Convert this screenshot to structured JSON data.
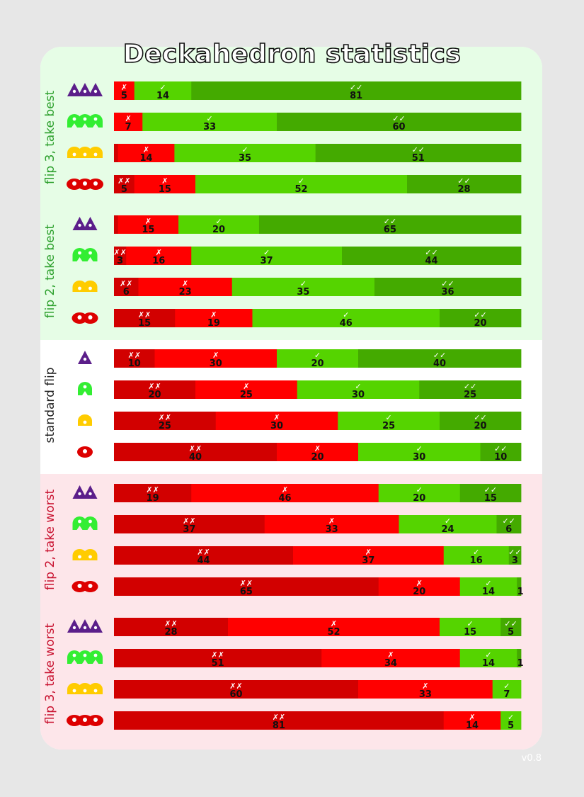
{
  "title": "Deckahedron statistics",
  "version": "v0.8",
  "colors": {
    "page_bg": "#e7e7e7",
    "good_section_bg": "#e6fde6",
    "neutral_section_bg": "#ffffff",
    "bad_section_bg": "#fde6ea",
    "double_fail": "#d20000",
    "fail": "#ff0000",
    "success": "#55d400",
    "double_success": "#44aa00",
    "good_label": "#2ca02c",
    "neutral_label": "#222222",
    "bad_label": "#c8102e",
    "icon_purple": "#5b1e8a",
    "icon_green": "#33ee33",
    "icon_yellow": "#ffcc00",
    "icon_red": "#dd0000"
  },
  "outcome_marks": {
    "double_fail": "✗✗",
    "fail": "✗",
    "success": "✓",
    "double_success": "✓✓"
  },
  "chart_data": {
    "type": "bar",
    "orientation": "horizontal",
    "stacked": true,
    "normalized_percent": true,
    "series": [
      {
        "name": "✗✗"
      },
      {
        "name": "✗"
      },
      {
        "name": "✓"
      },
      {
        "name": "✓✓"
      }
    ],
    "groups": [
      {
        "label": "flip 3, take best",
        "tone": "good",
        "rows": [
          {
            "icon": "triangle-icon",
            "icon_color": "purple",
            "count": 3,
            "values": [
              0,
              5,
              14,
              81
            ],
            "labels": [
              "",
              "5",
              "14",
              "81"
            ]
          },
          {
            "icon": "arch-icon",
            "icon_color": "green",
            "count": 3,
            "values": [
              0,
              7,
              33,
              60
            ],
            "labels": [
              "",
              "7",
              "33",
              "60"
            ]
          },
          {
            "icon": "dome-icon",
            "icon_color": "yellow",
            "count": 3,
            "values": [
              1,
              14,
              35,
              51
            ],
            "labels": [
              "",
              "14",
              "35",
              "51"
            ]
          },
          {
            "icon": "blob-icon",
            "icon_color": "red",
            "count": 3,
            "values": [
              5,
              15,
              52,
              28
            ],
            "labels": [
              "5",
              "15",
              "52",
              "28"
            ]
          }
        ]
      },
      {
        "label": "flip 2, take best",
        "tone": "good",
        "rows": [
          {
            "icon": "triangle-icon",
            "icon_color": "purple",
            "count": 2,
            "values": [
              1,
              15,
              20,
              65
            ],
            "labels": [
              "",
              "15",
              "20",
              "65"
            ]
          },
          {
            "icon": "arch-icon",
            "icon_color": "green",
            "count": 2,
            "values": [
              3,
              16,
              37,
              44
            ],
            "labels": [
              "3",
              "16",
              "37",
              "44"
            ]
          },
          {
            "icon": "dome-icon",
            "icon_color": "yellow",
            "count": 2,
            "values": [
              6,
              23,
              35,
              36
            ],
            "labels": [
              "6",
              "23",
              "35",
              "36"
            ]
          },
          {
            "icon": "blob-icon",
            "icon_color": "red",
            "count": 2,
            "values": [
              15,
              19,
              46,
              20
            ],
            "labels": [
              "15",
              "19",
              "46",
              "20"
            ]
          }
        ]
      },
      {
        "label": "standard flip",
        "tone": "neutral",
        "rows": [
          {
            "icon": "triangle-icon",
            "icon_color": "purple",
            "count": 1,
            "values": [
              10,
              30,
              20,
              40
            ],
            "labels": [
              "10",
              "30",
              "20",
              "40"
            ]
          },
          {
            "icon": "arch-icon",
            "icon_color": "green",
            "count": 1,
            "values": [
              20,
              25,
              30,
              25
            ],
            "labels": [
              "20",
              "25",
              "30",
              "25"
            ]
          },
          {
            "icon": "dome-icon",
            "icon_color": "yellow",
            "count": 1,
            "values": [
              25,
              30,
              25,
              20
            ],
            "labels": [
              "25",
              "30",
              "25",
              "20"
            ]
          },
          {
            "icon": "blob-icon",
            "icon_color": "red",
            "count": 1,
            "values": [
              40,
              20,
              30,
              10
            ],
            "labels": [
              "40",
              "20",
              "30",
              "10"
            ]
          }
        ]
      },
      {
        "label": "flip 2, take worst",
        "tone": "bad",
        "rows": [
          {
            "icon": "triangle-icon",
            "icon_color": "purple",
            "count": 2,
            "values": [
              19,
              46,
              20,
              15
            ],
            "labels": [
              "19",
              "46",
              "20",
              "15"
            ]
          },
          {
            "icon": "arch-icon",
            "icon_color": "green",
            "count": 2,
            "values": [
              37,
              33,
              24,
              6
            ],
            "labels": [
              "37",
              "33",
              "24",
              "6"
            ]
          },
          {
            "icon": "dome-icon",
            "icon_color": "yellow",
            "count": 2,
            "values": [
              44,
              37,
              16,
              3
            ],
            "labels": [
              "44",
              "37",
              "16",
              "3"
            ]
          },
          {
            "icon": "blob-icon",
            "icon_color": "red",
            "count": 2,
            "values": [
              65,
              20,
              14,
              1
            ],
            "labels": [
              "65",
              "20",
              "14",
              "1"
            ]
          }
        ]
      },
      {
        "label": "flip 3, take worst",
        "tone": "bad",
        "rows": [
          {
            "icon": "triangle-icon",
            "icon_color": "purple",
            "count": 3,
            "values": [
              28,
              52,
              15,
              5
            ],
            "labels": [
              "28",
              "52",
              "15",
              "5"
            ]
          },
          {
            "icon": "arch-icon",
            "icon_color": "green",
            "count": 3,
            "values": [
              51,
              34,
              14,
              1
            ],
            "labels": [
              "51",
              "34",
              "14",
              "1"
            ]
          },
          {
            "icon": "dome-icon",
            "icon_color": "yellow",
            "count": 3,
            "values": [
              60,
              33,
              7,
              0
            ],
            "labels": [
              "60",
              "33",
              "7",
              ""
            ]
          },
          {
            "icon": "blob-icon",
            "icon_color": "red",
            "count": 3,
            "values": [
              81,
              14,
              5,
              0
            ],
            "labels": [
              "81",
              "14",
              "5",
              ""
            ]
          }
        ]
      }
    ]
  }
}
